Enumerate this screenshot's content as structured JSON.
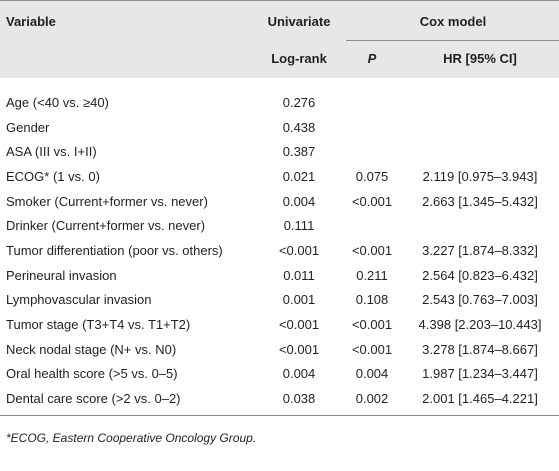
{
  "header": {
    "variable": "Variable",
    "univariate": "Univariate",
    "cox_model": "Cox model",
    "log_rank": "Log-rank",
    "p": "P",
    "hr": "HR [95% CI]"
  },
  "rows": [
    {
      "variable": "Age (<40 vs. ≥40)",
      "log_rank": "0.276"
    },
    {
      "variable": "Gender",
      "log_rank": "0.438"
    },
    {
      "variable": "ASA (III vs. I+II)",
      "log_rank": "0.387"
    },
    {
      "variable": "ECOG* (1 vs. 0)",
      "log_rank": "0.021",
      "p": "0.075",
      "hr": "2.119 [0.975–3.943]"
    },
    {
      "variable": "Smoker (Current+former vs. never)",
      "log_rank": "0.004",
      "p": "<0.001",
      "hr": "2.663 [1.345–5.432]"
    },
    {
      "variable": "Drinker (Current+former vs. never)",
      "log_rank": "0.111"
    },
    {
      "variable": "Tumor differentiation (poor vs. others)",
      "log_rank": "<0.001",
      "p": "<0.001",
      "hr": "3.227 [1.874–8.332]"
    },
    {
      "variable": "Perineural invasion",
      "log_rank": "0.011",
      "p": "0.211",
      "hr": "2.564 [0.823–6.432]"
    },
    {
      "variable": "Lymphovascular invasion",
      "log_rank": "0.001",
      "p": "0.108",
      "hr": "2.543 [0.763–7.003]"
    },
    {
      "variable": "Tumor stage (T3+T4 vs. T1+T2)",
      "log_rank": "<0.001",
      "p": "<0.001",
      "hr": "4.398 [2.203–10.443]"
    },
    {
      "variable": "Neck nodal stage (N+ vs. N0)",
      "log_rank": "<0.001",
      "p": "<0.001",
      "hr": "3.278 [1.874–8.667]"
    },
    {
      "variable": "Oral health score (>5 vs. 0–5)",
      "log_rank": "0.004",
      "p": "0.004",
      "hr": "1.987 [1.234–3.447]"
    },
    {
      "variable": "Dental care score (>2 vs. 0–2)",
      "log_rank": "0.038",
      "p": "0.002",
      "hr": "2.001 [1.465–4.221]"
    }
  ],
  "footnote": "*ECOG, Eastern Cooperative Oncology Group."
}
